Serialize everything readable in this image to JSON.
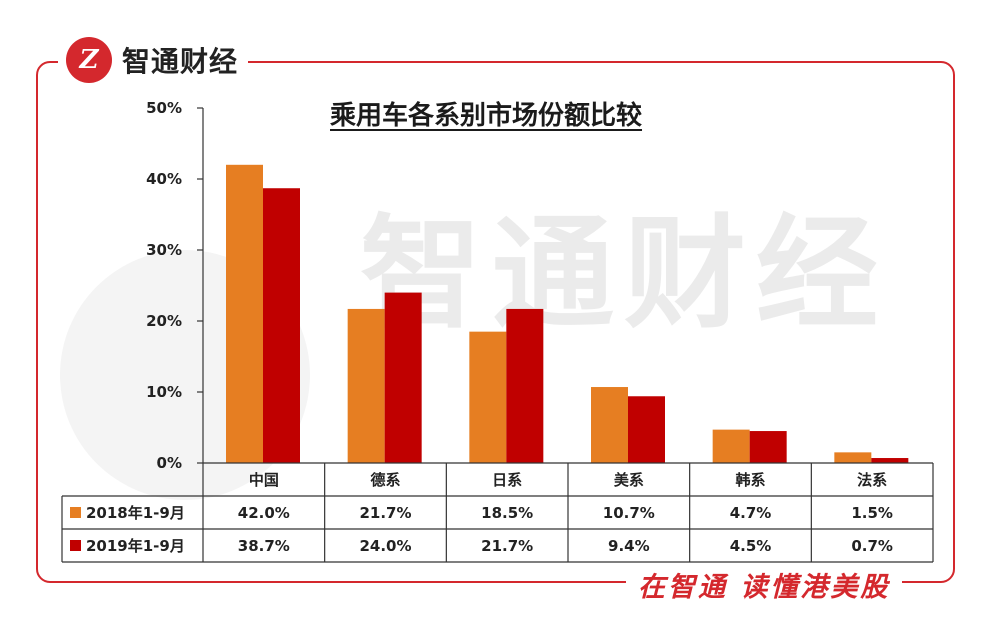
{
  "brand": {
    "name": "智通财经",
    "logo_text": "Z"
  },
  "slogan": "在智通 读懂港美股",
  "watermark": "智通财经",
  "colors": {
    "accent": "#d4282d",
    "series1": "#e67e22",
    "series2": "#c00000"
  },
  "chart_data": {
    "type": "bar",
    "title": "乘用车各系别市场份额比较",
    "xlabel": "",
    "ylabel": "",
    "categories": [
      "中国",
      "德系",
      "日系",
      "美系",
      "韩系",
      "法系"
    ],
    "ylim": [
      0,
      50
    ],
    "yticks": [
      "0%",
      "10%",
      "20%",
      "30%",
      "40%",
      "50%"
    ],
    "grid": false,
    "legend": "table",
    "series": [
      {
        "name": "2018年1-9月",
        "color": "#e67e22",
        "values": [
          42.0,
          21.7,
          18.5,
          10.7,
          4.7,
          1.5
        ],
        "labels": [
          "42.0%",
          "21.7%",
          "18.5%",
          "10.7%",
          "4.7%",
          "1.5%"
        ]
      },
      {
        "name": "2019年1-9月",
        "color": "#c00000",
        "values": [
          38.7,
          24.0,
          21.7,
          9.4,
          4.5,
          0.7
        ],
        "labels": [
          "38.7%",
          "24.0%",
          "21.7%",
          "9.4%",
          "4.5%",
          "0.7%"
        ]
      }
    ]
  }
}
